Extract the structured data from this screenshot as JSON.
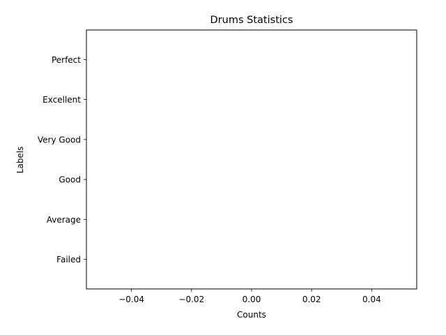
{
  "chart_data": {
    "type": "bar",
    "orientation": "horizontal",
    "title": "Drums Statistics",
    "xlabel": "Counts",
    "ylabel": "Labels",
    "categories": [
      "Failed",
      "Average",
      "Good",
      "Very Good",
      "Excellent",
      "Perfect"
    ],
    "values": [
      0,
      0,
      0,
      0,
      0,
      0
    ],
    "xlim": [
      -0.055,
      0.055
    ],
    "x_ticks": [
      -0.04,
      -0.02,
      0.0,
      0.02,
      0.04
    ],
    "x_tick_labels": [
      "−0.04",
      "−0.02",
      "0.00",
      "0.02",
      "0.04"
    ],
    "grid": false,
    "colors": {
      "frame": "#000000",
      "bar": "#1f77b4"
    }
  }
}
